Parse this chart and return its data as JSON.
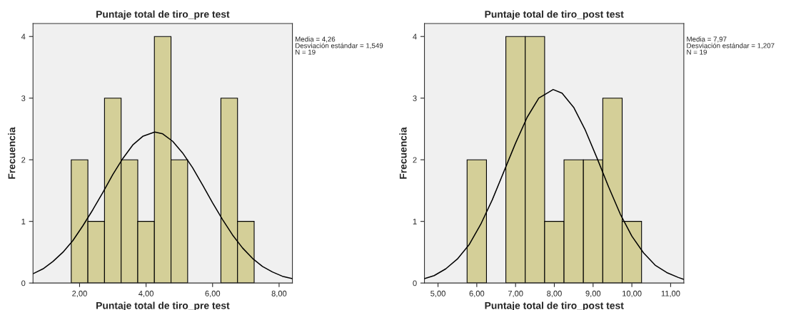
{
  "chart_data": [
    {
      "type": "histogram",
      "title": "Puntaje total de tiro_pre test",
      "xlabel": "Puntaje total de tiro_pre test",
      "ylabel": "Frecuencia",
      "series": [
        {
          "color": "#d4cf98",
          "bins": [
            1.75,
            2.25,
            2.75,
            3.25,
            3.75,
            4.25,
            4.75,
            5.25,
            5.75,
            6.25,
            6.75,
            7.25
          ],
          "values": [
            2,
            1,
            3,
            2,
            1,
            4,
            2,
            0,
            0,
            3,
            1
          ]
        },
        {
          "type": "line",
          "color": "#000000",
          "x": [
            0.6,
            0.9,
            1.2,
            1.5,
            1.8,
            2.1,
            2.4,
            2.7,
            3.0,
            3.3,
            3.6,
            3.9,
            4.26,
            4.5,
            4.8,
            5.1,
            5.4,
            5.7,
            6.0,
            6.3,
            6.6,
            6.9,
            7.2,
            7.5,
            7.8,
            8.1,
            8.4
          ],
          "values": [
            0.15,
            0.23,
            0.35,
            0.5,
            0.69,
            0.93,
            1.19,
            1.47,
            1.76,
            2.02,
            2.24,
            2.38,
            2.45,
            2.42,
            2.3,
            2.11,
            1.87,
            1.59,
            1.3,
            1.03,
            0.78,
            0.57,
            0.4,
            0.27,
            0.18,
            0.11,
            0.07
          ]
        }
      ],
      "xlim": [
        0.6,
        8.4
      ],
      "xticks": [
        {
          "value": 2,
          "label": "2,00"
        },
        {
          "value": 4,
          "label": "4,00"
        },
        {
          "value": 6,
          "label": "6,00"
        },
        {
          "value": 8,
          "label": "8,00"
        }
      ],
      "ylim": [
        0,
        4.21
      ],
      "yticks": [
        0,
        1,
        2,
        3,
        4
      ],
      "grid": false,
      "annotations": [
        "Media = 4,26",
        "Desviación estándar = 1,549",
        "N = 19"
      ]
    },
    {
      "type": "histogram",
      "title": "Puntaje total de tiro_post test",
      "xlabel": "Puntaje total de tiro_post test",
      "ylabel": "Frecuencia",
      "series": [
        {
          "color": "#d4cf98",
          "bins": [
            5.75,
            6.25,
            6.75,
            7.25,
            7.75,
            8.25,
            8.75,
            9.25,
            9.75,
            10.25
          ],
          "values": [
            2,
            0,
            4,
            4,
            1,
            2,
            2,
            3,
            1
          ]
        },
        {
          "type": "line",
          "color": "#000000",
          "x": [
            4.65,
            4.9,
            5.2,
            5.5,
            5.8,
            6.1,
            6.4,
            6.7,
            7.0,
            7.3,
            7.6,
            7.97,
            8.2,
            8.5,
            8.8,
            9.1,
            9.4,
            9.7,
            10.0,
            10.3,
            10.6,
            10.9,
            11.2,
            11.34
          ],
          "values": [
            0.07,
            0.12,
            0.23,
            0.39,
            0.62,
            0.95,
            1.35,
            1.81,
            2.27,
            2.69,
            3.0,
            3.14,
            3.08,
            2.85,
            2.48,
            2.03,
            1.56,
            1.12,
            0.76,
            0.49,
            0.29,
            0.17,
            0.09,
            0.06
          ]
        }
      ],
      "xlim": [
        4.65,
        11.34
      ],
      "xticks": [
        {
          "value": 5,
          "label": "5,00"
        },
        {
          "value": 6,
          "label": "6,00"
        },
        {
          "value": 7,
          "label": "7,00"
        },
        {
          "value": 8,
          "label": "8,00"
        },
        {
          "value": 9,
          "label": "9,00"
        },
        {
          "value": 10,
          "label": "10,00"
        },
        {
          "value": 11,
          "label": "11,00"
        }
      ],
      "ylim": [
        0,
        4.21
      ],
      "yticks": [
        0,
        1,
        2,
        3,
        4
      ],
      "grid": false,
      "annotations": [
        "Media = 7,97",
        "Desviación estándar = 1,207",
        "N = 19"
      ]
    }
  ]
}
